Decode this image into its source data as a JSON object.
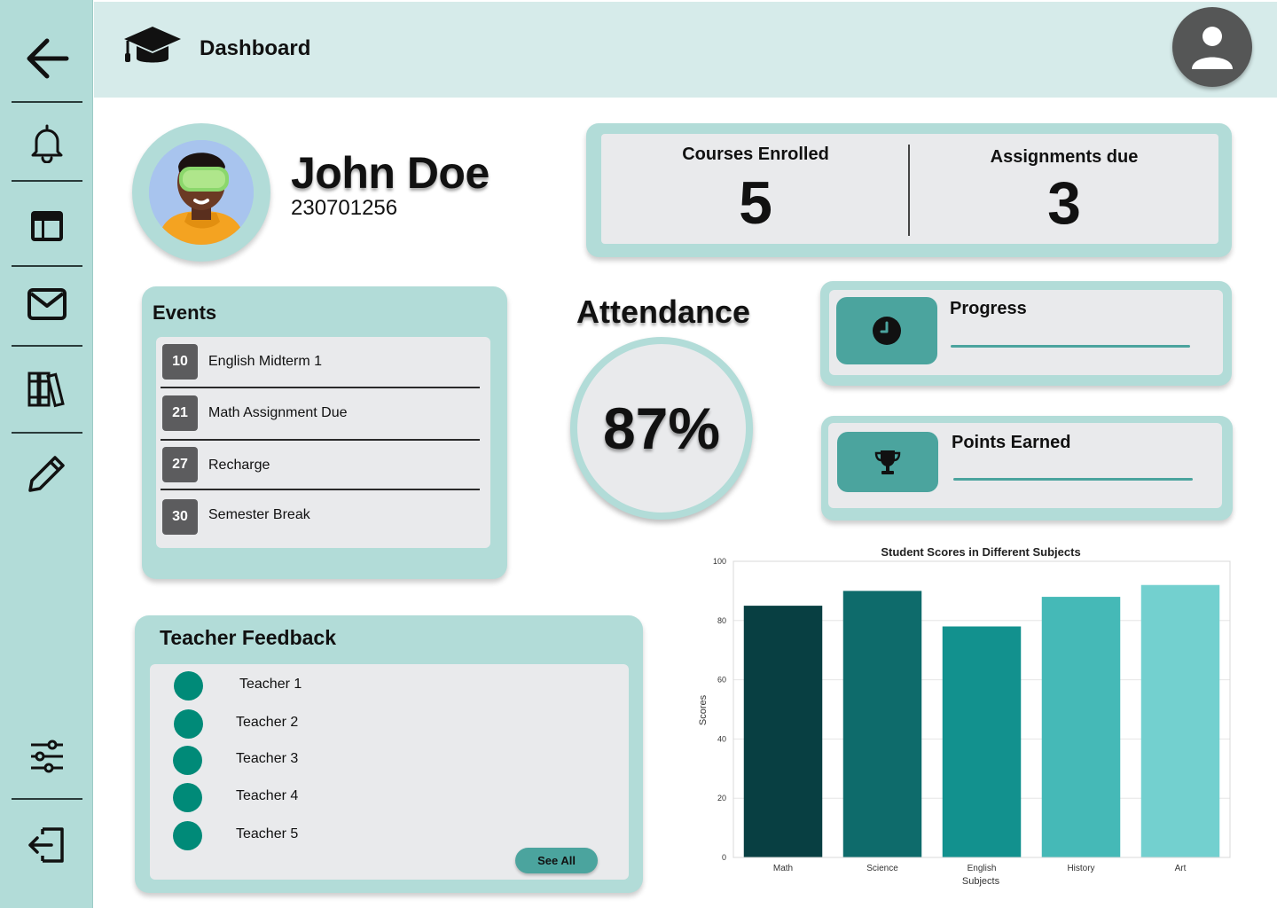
{
  "header": {
    "title": "Dashboard"
  },
  "profile": {
    "name": "John Doe",
    "id": "230701256"
  },
  "stats": [
    {
      "label": "Courses Enrolled",
      "value": "5"
    },
    {
      "label": "Assignments due",
      "value": "3"
    }
  ],
  "events": {
    "title": "Events",
    "items": [
      {
        "day": "10",
        "name": "English Midterm 1"
      },
      {
        "day": "21",
        "name": "Math Assignment Due"
      },
      {
        "day": "27",
        "name": "Recharge"
      },
      {
        "day": "30",
        "name": "Semester Break"
      }
    ]
  },
  "attendance": {
    "title": "Attendance",
    "value": "87%"
  },
  "progress": {
    "label": "Progress",
    "icon": "clock-icon"
  },
  "points": {
    "label": "Points Earned",
    "icon": "trophy-icon"
  },
  "feedback": {
    "title": "Teacher Feedback",
    "teachers": [
      "Teacher 1",
      "Teacher 2",
      "Teacher 3",
      "Teacher 4",
      "Teacher 5"
    ],
    "see_all": "See All"
  },
  "colors": {
    "accent": "#4ba49e",
    "panel": "#b2dcd8",
    "header": "#d6ebea",
    "card": "#e9eaec",
    "teacher_dot": "#008a78"
  },
  "chart_data": {
    "type": "bar",
    "title": "Student Scores in Different Subjects",
    "xlabel": "Subjects",
    "ylabel": "Scores",
    "ylim": [
      0,
      100
    ],
    "yticks": [
      0,
      20,
      40,
      60,
      80,
      100
    ],
    "categories": [
      "Math",
      "Science",
      "English",
      "History",
      "Art"
    ],
    "values": [
      85,
      90,
      78,
      88,
      92
    ],
    "bar_colors": [
      "#083f42",
      "#0e6b6b",
      "#12918e",
      "#45b9b7",
      "#73d0cf"
    ],
    "grid": true
  }
}
